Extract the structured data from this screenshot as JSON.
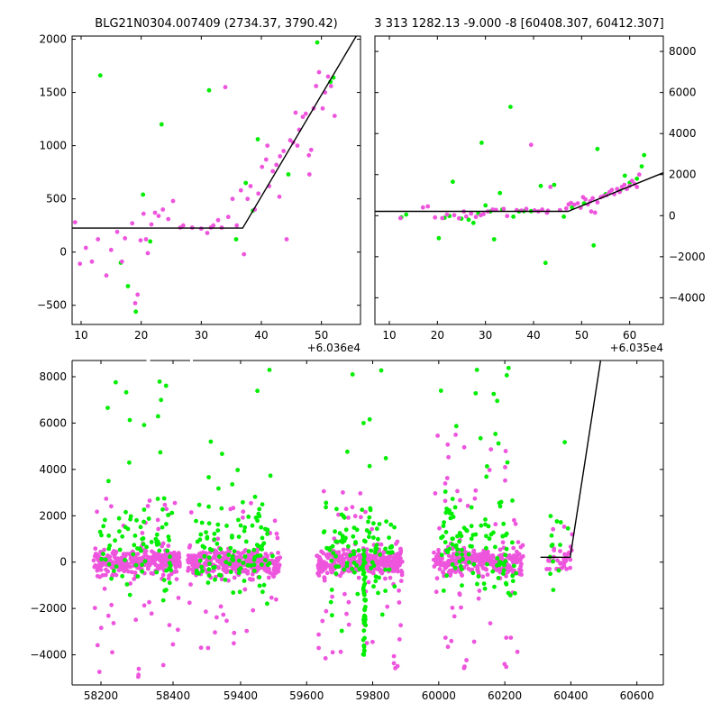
{
  "colors": {
    "green": "#00ee00",
    "magenta": "#ee55dd",
    "line": "#000000"
  },
  "chart_data": [
    {
      "type": "scatter",
      "title": "BLG21N0304.007409 (2734.37, 3790.42)",
      "x_offset_label": "+6.036e4",
      "xlim": [
        8.5,
        56.5
      ],
      "ylim": [
        -680,
        2030
      ],
      "xticks": [
        10,
        20,
        30,
        40,
        50
      ],
      "yticks": [
        -500,
        0,
        500,
        1000,
        1500,
        2000
      ],
      "series": [
        {
          "color": "green",
          "points": [
            [
              13.2,
              1660
            ],
            [
              16.6,
              -100
            ],
            [
              17.8,
              -320
            ],
            [
              19.1,
              -560
            ],
            [
              20.3,
              540
            ],
            [
              21.5,
              100
            ],
            [
              23.4,
              1200
            ],
            [
              31.3,
              1520
            ],
            [
              35.8,
              120
            ],
            [
              37.4,
              650
            ],
            [
              38.6,
              390
            ],
            [
              39.4,
              1060
            ],
            [
              44.5,
              730
            ],
            [
              49.3,
              1970
            ],
            [
              51.5,
              1600
            ],
            [
              52.0,
              1640
            ]
          ]
        },
        {
          "color": "magenta",
          "points": [
            [
              9.0,
              280
            ],
            [
              9.8,
              -110
            ],
            [
              10.8,
              40
            ],
            [
              11.8,
              -90
            ],
            [
              12.8,
              120
            ],
            [
              14.2,
              -220
            ],
            [
              15.0,
              20
            ],
            [
              16.0,
              190
            ],
            [
              16.8,
              -90
            ],
            [
              17.3,
              130
            ],
            [
              18.5,
              270
            ],
            [
              19.0,
              -480
            ],
            [
              19.4,
              -400
            ],
            [
              19.9,
              110
            ],
            [
              20.4,
              360
            ],
            [
              21.1,
              -10
            ],
            [
              21.7,
              260
            ],
            [
              22.3,
              370
            ],
            [
              22.9,
              340
            ],
            [
              23.6,
              400
            ],
            [
              24.5,
              310
            ],
            [
              25.3,
              480
            ],
            [
              26.5,
              230
            ],
            [
              27.0,
              250
            ],
            [
              28.5,
              230
            ],
            [
              30.0,
              220
            ],
            [
              31.0,
              180
            ],
            [
              31.6,
              230
            ],
            [
              32.0,
              250
            ],
            [
              32.8,
              300
            ],
            [
              33.4,
              230
            ],
            [
              34.0,
              1550
            ],
            [
              34.5,
              330
            ],
            [
              35.2,
              500
            ],
            [
              35.9,
              250
            ],
            [
              36.6,
              580
            ],
            [
              37.1,
              -20
            ],
            [
              37.7,
              500
            ],
            [
              38.2,
              620
            ],
            [
              38.9,
              400
            ],
            [
              39.5,
              550
            ],
            [
              40.1,
              800
            ],
            [
              40.8,
              870
            ],
            [
              41.3,
              620
            ],
            [
              41.9,
              760
            ],
            [
              42.5,
              820
            ],
            [
              43.1,
              900
            ],
            [
              43.7,
              950
            ],
            [
              44.2,
              120
            ],
            [
              44.8,
              1050
            ],
            [
              45.3,
              1030
            ],
            [
              45.7,
              1310
            ],
            [
              46.3,
              1150
            ],
            [
              46.9,
              1270
            ],
            [
              47.4,
              1300
            ],
            [
              47.9,
              910
            ],
            [
              48.3,
              960
            ],
            [
              48.7,
              1350
            ],
            [
              49.1,
              1560
            ],
            [
              49.6,
              1690
            ],
            [
              50.2,
              1350
            ],
            [
              50.6,
              1500
            ],
            [
              51.1,
              1650
            ],
            [
              51.6,
              1560
            ],
            [
              52.2,
              1280
            ],
            [
              48.0,
              730
            ],
            [
              46.0,
              1000
            ],
            [
              43.0,
              520
            ],
            [
              41.0,
              1000
            ],
            [
              20.8,
              120
            ]
          ]
        }
      ],
      "model_line": [
        [
          8.5,
          225
        ],
        [
          36.9,
          225
        ],
        [
          55.8,
          2030
        ]
      ]
    },
    {
      "type": "scatter",
      "title": "3 313 1282.13 -9.000 -8 [60408.307, 60412.307]",
      "x_offset_label": "+6.035e4",
      "xlim": [
        7.0,
        67.0
      ],
      "ylim": [
        -5300,
        8750
      ],
      "xticks": [
        10,
        20,
        30,
        40,
        50,
        60
      ],
      "yticks": [
        -4000,
        -2000,
        0,
        2000,
        4000,
        6000,
        8000
      ],
      "series": [
        {
          "color": "green",
          "points": [
            [
              12.5,
              -80
            ],
            [
              13.5,
              50
            ],
            [
              20.3,
              -1100
            ],
            [
              21.5,
              -100
            ],
            [
              22.5,
              -20
            ],
            [
              23.2,
              1650
            ],
            [
              25.0,
              -150
            ],
            [
              26.5,
              -200
            ],
            [
              27.5,
              -350
            ],
            [
              28.5,
              120
            ],
            [
              29.2,
              3550
            ],
            [
              30.0,
              500
            ],
            [
              31.0,
              200
            ],
            [
              31.8,
              -1150
            ],
            [
              33.0,
              1100
            ],
            [
              33.5,
              300
            ],
            [
              35.2,
              5300
            ],
            [
              35.8,
              -50
            ],
            [
              37.0,
              200
            ],
            [
              38.0,
              220
            ],
            [
              39.5,
              220
            ],
            [
              41.5,
              1450
            ],
            [
              42.5,
              -2300
            ],
            [
              44.3,
              1500
            ],
            [
              46.3,
              -50
            ],
            [
              48.0,
              400
            ],
            [
              50.5,
              600
            ],
            [
              52.5,
              -1450
            ],
            [
              53.3,
              3250
            ],
            [
              55.0,
              1050
            ],
            [
              58.0,
              1200
            ],
            [
              59.0,
              1950
            ],
            [
              60.0,
              1600
            ],
            [
              61.5,
              1800
            ],
            [
              62.5,
              2400
            ],
            [
              63.0,
              2950
            ]
          ]
        },
        {
          "color": "magenta",
          "points": [
            [
              12.3,
              -120
            ],
            [
              17.0,
              400
            ],
            [
              18.0,
              450
            ],
            [
              19.5,
              -90
            ],
            [
              21.0,
              -120
            ],
            [
              22.0,
              50
            ],
            [
              23.5,
              20
            ],
            [
              24.5,
              -130
            ],
            [
              25.5,
              200
            ],
            [
              26.0,
              -40
            ],
            [
              27.0,
              100
            ],
            [
              28.0,
              -60
            ],
            [
              29.0,
              20
            ],
            [
              29.6,
              80
            ],
            [
              30.5,
              200
            ],
            [
              31.5,
              300
            ],
            [
              32.2,
              280
            ],
            [
              33.8,
              330
            ],
            [
              34.5,
              -20
            ],
            [
              36.5,
              270
            ],
            [
              37.5,
              250
            ],
            [
              38.5,
              330
            ],
            [
              39.5,
              3450
            ],
            [
              40.2,
              260
            ],
            [
              41.0,
              210
            ],
            [
              41.8,
              300
            ],
            [
              42.8,
              140
            ],
            [
              43.5,
              1400
            ],
            [
              45.5,
              270
            ],
            [
              46.8,
              350
            ],
            [
              47.3,
              550
            ],
            [
              47.8,
              620
            ],
            [
              48.5,
              530
            ],
            [
              49.2,
              600
            ],
            [
              49.8,
              380
            ],
            [
              50.3,
              900
            ],
            [
              50.8,
              800
            ],
            [
              51.3,
              550
            ],
            [
              51.8,
              700
            ],
            [
              52.3,
              850
            ],
            [
              52.8,
              150
            ],
            [
              53.3,
              650
            ],
            [
              54.0,
              900
            ],
            [
              54.5,
              950
            ],
            [
              55.2,
              1000
            ],
            [
              55.8,
              1150
            ],
            [
              56.3,
              1250
            ],
            [
              56.8,
              1050
            ],
            [
              57.4,
              1300
            ],
            [
              57.9,
              1150
            ],
            [
              58.4,
              1400
            ],
            [
              58.9,
              1500
            ],
            [
              59.4,
              1300
            ],
            [
              60.0,
              1450
            ],
            [
              60.5,
              1700
            ],
            [
              61.0,
              1550
            ],
            [
              61.5,
              1400
            ],
            [
              62.0,
              2000
            ],
            [
              52.0,
              200
            ],
            [
              43.0,
              240
            ]
          ]
        }
      ],
      "model_line": [
        [
          7.0,
          210
        ],
        [
          47.2,
          210
        ],
        [
          67.0,
          2090
        ]
      ]
    },
    {
      "type": "scatter",
      "title": "",
      "xlim": [
        58120,
        60680
      ],
      "ylim": [
        -5300,
        8700
      ],
      "xticks": [
        58200,
        58400,
        59400,
        59600,
        59800,
        60000,
        60200,
        60400,
        60600
      ],
      "yticks": [
        -4000,
        -2000,
        0,
        2000,
        4000,
        6000,
        8000
      ],
      "season_gap": [
        58450,
        59250
      ],
      "seasons": [
        {
          "center": 58300,
          "width": 240,
          "green_max": 8100,
          "green_min": -2600,
          "magenta_max": 2800,
          "magenta_min": -5100,
          "n_magenta": 360,
          "n_green": 90
        },
        {
          "center": 59380,
          "width": 280,
          "green_max": 8350,
          "green_min": -2100,
          "magenta_max": 2600,
          "magenta_min": -3800,
          "n_magenta": 360,
          "n_green": 120
        },
        {
          "center": 59760,
          "width": 260,
          "green_max": 8600,
          "green_min": -4100,
          "magenta_max": 3200,
          "magenta_min": -4700,
          "n_magenta": 380,
          "n_green": 110
        },
        {
          "center": 60120,
          "width": 270,
          "green_max": 8600,
          "green_min": -1500,
          "magenta_max": 5600,
          "magenta_min": -4800,
          "n_magenta": 360,
          "n_green": 120
        },
        {
          "center": 60365,
          "width": 80,
          "green_max": 5300,
          "green_min": -2200,
          "magenta_max": 2400,
          "magenta_min": -300,
          "n_magenta": 40,
          "n_green": 14
        }
      ],
      "model_line": [
        [
          60308,
          210
        ],
        [
          60398,
          210
        ],
        [
          60490,
          8700
        ]
      ]
    }
  ]
}
